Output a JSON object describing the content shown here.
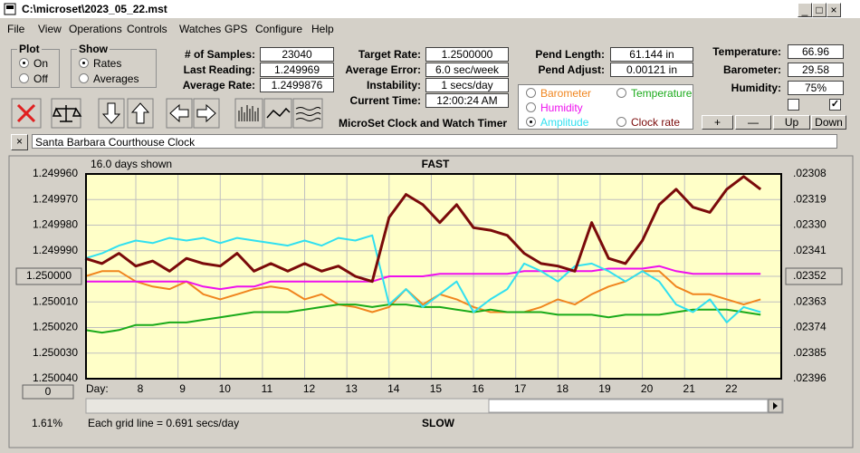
{
  "window": {
    "title": "C:\\microset\\2023_05_22.mst"
  },
  "menu": [
    "File",
    "View",
    "Operations",
    "Controls",
    "Watches",
    "GPS",
    "Configure",
    "Help"
  ],
  "plot_group": {
    "title": "Plot",
    "options": [
      "On",
      "Off"
    ]
  },
  "show_group": {
    "title": "Show",
    "options": [
      "Rates",
      "Averages"
    ]
  },
  "fields": [
    {
      "label": "# of Samples:",
      "value": "23040"
    },
    {
      "label": "Last Reading:",
      "value": "1.249969"
    },
    {
      "label": "Average Rate:",
      "value": "1.2499876"
    },
    {
      "label": "Target Rate:",
      "value": "1.2500000"
    },
    {
      "label": "Average Error:",
      "value": "6.0 sec/week"
    },
    {
      "label": "Instability:",
      "value": "1 secs/day"
    },
    {
      "label": "Current Time:",
      "value": "12:00:24 AM"
    },
    {
      "label": "Pend Length:",
      "value": "61.144 in"
    },
    {
      "label": "Pend Adjust:",
      "value": "0.00121 in"
    },
    {
      "label": "Temperature:",
      "value": "66.96"
    },
    {
      "label": "Barometer:",
      "value": "29.58"
    },
    {
      "label": "Humidity:",
      "value": "75%"
    }
  ],
  "app_title": "MicroSet Clock and Watch Timer",
  "buttons": [
    "+",
    "—",
    "Up",
    "Down"
  ],
  "clock_name": "Santa Barbara Courthouse Clock",
  "chart_data": {
    "type": "line",
    "top_label": "FAST",
    "bottom_label": "SLOW",
    "span_label": "16.0 days shown",
    "grid_note": "Each grid line = 0.691 secs/day",
    "x_label": "Day:",
    "corner_label": "1.61%",
    "offset_button": "0",
    "grid": true,
    "y_reversed": true,
    "xlim": [
      6.82,
      23.29
    ],
    "xticks": [
      8,
      9,
      10,
      11,
      12,
      13,
      14,
      15,
      16,
      17,
      18,
      19,
      20,
      21,
      22
    ],
    "ylim": [
      1.24996,
      1.25004
    ],
    "yticks": [
      {
        "value": 1.24996,
        "label": "1.249960"
      },
      {
        "value": 1.24997,
        "label": "1.249970"
      },
      {
        "value": 1.24998,
        "label": "1.249980"
      },
      {
        "value": 1.24999,
        "label": "1.249990"
      },
      {
        "value": 1.25,
        "label": "1.250000"
      },
      {
        "value": 1.25001,
        "label": "1.250010"
      },
      {
        "value": 1.25002,
        "label": "1.250020"
      },
      {
        "value": 1.25003,
        "label": "1.250030"
      },
      {
        "value": 1.25004,
        "label": "1.250040"
      }
    ],
    "y2lim": [
      0.02308,
      0.02396
    ],
    "y2ticks": [
      {
        "value": 0.02308,
        "label": ".02308"
      },
      {
        "value": 0.02319,
        "label": ".02319"
      },
      {
        "value": 0.0233,
        "label": ".02330"
      },
      {
        "value": 0.02341,
        "label": ".02341"
      },
      {
        "value": 0.02352,
        "label": ".02352"
      },
      {
        "value": 0.02363,
        "label": ".02363"
      },
      {
        "value": 0.02374,
        "label": ".02374"
      },
      {
        "value": 0.02385,
        "label": ".02385"
      },
      {
        "value": 0.02396,
        "label": ".02396"
      }
    ],
    "x": [
      6.8,
      7.2,
      7.6,
      8.0,
      8.4,
      8.8,
      9.2,
      9.6,
      10.0,
      10.4,
      10.8,
      11.2,
      11.6,
      12.0,
      12.4,
      12.8,
      13.2,
      13.6,
      14.0,
      14.4,
      14.8,
      15.2,
      15.6,
      16.0,
      16.4,
      16.8,
      17.2,
      17.6,
      18.0,
      18.4,
      18.8,
      19.2,
      19.6,
      20.0,
      20.4,
      20.8,
      21.2,
      21.6,
      22.0,
      22.4,
      22.8
    ],
    "series": [
      {
        "name": "Barometer",
        "color": "#f0851e",
        "values": [
          1.25,
          1.249998,
          1.249998,
          1.250002,
          1.250004,
          1.250005,
          1.250002,
          1.250007,
          1.250009,
          1.250007,
          1.250005,
          1.250004,
          1.250005,
          1.250009,
          1.250007,
          1.250011,
          1.250012,
          1.250014,
          1.250012,
          1.250005,
          1.250011,
          1.250007,
          1.250009,
          1.250012,
          1.250014,
          1.250014,
          1.250014,
          1.250012,
          1.250009,
          1.250011,
          1.250007,
          1.250004,
          1.250002,
          1.249998,
          1.249998,
          1.250004,
          1.250007,
          1.250007,
          1.250009,
          1.250011,
          1.250009
        ]
      },
      {
        "name": "Temperature",
        "color": "#1aaa1a",
        "values": [
          1.250021,
          1.250022,
          1.250021,
          1.250019,
          1.250019,
          1.250018,
          1.250018,
          1.250017,
          1.250016,
          1.250015,
          1.250014,
          1.250014,
          1.250014,
          1.250013,
          1.250012,
          1.250011,
          1.250011,
          1.250012,
          1.250011,
          1.250011,
          1.250012,
          1.250012,
          1.250013,
          1.250014,
          1.250013,
          1.250014,
          1.250014,
          1.250014,
          1.250015,
          1.250015,
          1.250015,
          1.250016,
          1.250015,
          1.250015,
          1.250015,
          1.250014,
          1.250013,
          1.250013,
          1.250013,
          1.250014,
          1.250015
        ]
      },
      {
        "name": "Humidity",
        "color": "#ee10ee",
        "values": [
          1.250002,
          1.250002,
          1.250002,
          1.250002,
          1.250002,
          1.250002,
          1.250002,
          1.250004,
          1.250005,
          1.250004,
          1.250004,
          1.250002,
          1.250002,
          1.250002,
          1.250002,
          1.250002,
          1.250002,
          1.250002,
          1.25,
          1.25,
          1.25,
          1.249999,
          1.249999,
          1.249999,
          1.249999,
          1.249999,
          1.249998,
          1.249998,
          1.249998,
          1.249998,
          1.249998,
          1.249997,
          1.249997,
          1.249997,
          1.249996,
          1.249998,
          1.249999,
          1.249999,
          1.249999,
          1.249999,
          1.249999
        ]
      },
      {
        "name": "Amplitude",
        "color": "#30e0f0",
        "selected": true,
        "values": [
          1.249993,
          1.249991,
          1.249988,
          1.249986,
          1.249987,
          1.249985,
          1.249986,
          1.249985,
          1.249987,
          1.249985,
          1.249986,
          1.249987,
          1.249988,
          1.249986,
          1.249988,
          1.249985,
          1.249986,
          1.249984,
          1.250011,
          1.250005,
          1.250012,
          1.250007,
          1.250002,
          1.250014,
          1.250009,
          1.250005,
          1.249995,
          1.249998,
          1.250002,
          1.249996,
          1.249995,
          1.249998,
          1.250002,
          1.249998,
          1.250002,
          1.250011,
          1.250014,
          1.250009,
          1.250018,
          1.250012,
          1.250014
        ]
      },
      {
        "name": "Clock rate",
        "color": "#7a0a0a",
        "values": [
          1.249993,
          1.249995,
          1.249991,
          1.249996,
          1.249994,
          1.249998,
          1.249993,
          1.249995,
          1.249996,
          1.249991,
          1.249998,
          1.249995,
          1.249998,
          1.249995,
          1.249998,
          1.249996,
          1.25,
          1.250002,
          1.249977,
          1.249968,
          1.249972,
          1.249979,
          1.249972,
          1.249981,
          1.249982,
          1.249984,
          1.249991,
          1.249995,
          1.249996,
          1.249998,
          1.249979,
          1.249993,
          1.249995,
          1.249986,
          1.249972,
          1.249966,
          1.249973,
          1.249975,
          1.249966,
          1.249961,
          1.249966
        ]
      }
    ]
  }
}
